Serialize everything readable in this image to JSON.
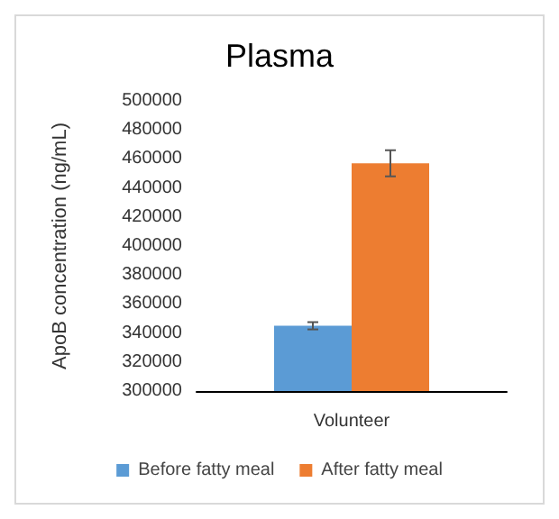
{
  "chart_data": {
    "type": "bar",
    "title": "Plasma",
    "ylabel": "ApoB concentration (ng/mL)",
    "categories": [
      "Volunteer"
    ],
    "series": [
      {
        "name": "Before fatty meal",
        "color": "#5b9bd5",
        "values": [
          345000
        ],
        "errors": [
          2500
        ]
      },
      {
        "name": "After fatty meal",
        "color": "#ed7d31",
        "values": [
          457000
        ],
        "errors": [
          9000
        ]
      }
    ],
    "ylim": [
      300000,
      500000
    ],
    "yticks": [
      300000,
      320000,
      340000,
      360000,
      380000,
      400000,
      420000,
      440000,
      460000,
      480000,
      500000
    ],
    "grid": false,
    "legend": "bottom"
  }
}
